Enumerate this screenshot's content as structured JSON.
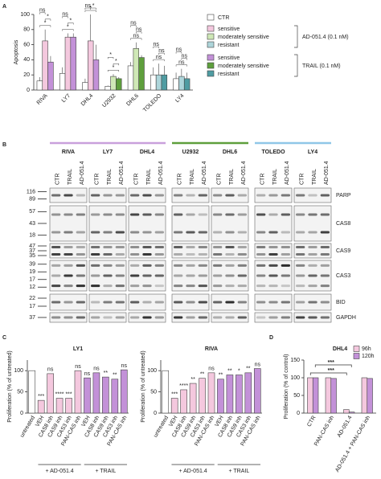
{
  "panel_labels": [
    "A",
    "B",
    "C",
    "D"
  ],
  "chart_data": [
    {
      "type": "bar",
      "ylabel": "Apoptosis",
      "categories": [
        "RIVA",
        "LY7",
        "DHL4",
        "U2932",
        "DHL6",
        "TOLEDO",
        "LY4"
      ],
      "ylim": [
        0,
        100
      ],
      "yticks": [
        0,
        20,
        40,
        60,
        80,
        100
      ],
      "series": [
        {
          "name": "CTR",
          "color": "#ffffff",
          "values": [
            12,
            22,
            10,
            5,
            32,
            20,
            15
          ],
          "errors": [
            5,
            8,
            5,
            1,
            5,
            10,
            8
          ]
        },
        {
          "name": "AD-051.4 (0.1 nM)",
          "values": [
            65,
            70,
            65,
            18,
            55,
            20,
            18
          ],
          "errors": [
            15,
            5,
            35,
            3,
            8,
            15,
            10
          ],
          "colors": [
            "#f4c8de",
            "#f4c8de",
            "#f4c8de",
            "#cfe8b6",
            "#cfe8b6",
            "#add5da",
            "#add5da"
          ],
          "legend": [
            {
              "label": "sensitive",
              "color": "#f4c8de"
            },
            {
              "label": "moderately sensitive",
              "color": "#cfe8b6"
            },
            {
              "label": "resistant",
              "color": "#add5da"
            }
          ]
        },
        {
          "name": "TRAIL (0.1 nM)",
          "values": [
            37,
            70,
            40,
            15,
            43,
            20,
            15
          ],
          "errors": [
            8,
            5,
            20,
            2,
            3,
            12,
            8
          ],
          "colors": [
            "#c391d8",
            "#c391d8",
            "#c391d8",
            "#5e9f3c",
            "#5e9f3c",
            "#4f9ca2",
            "#4f9ca2"
          ],
          "legend": [
            {
              "label": "sensitive",
              "color": "#c391d8"
            },
            {
              "label": "moderately sensitive",
              "color": "#5e9f3c"
            },
            {
              "label": "resistant",
              "color": "#4f9ca2"
            }
          ]
        }
      ],
      "significance": [
        [
          "ns",
          "*",
          "*"
        ],
        [
          "ns",
          "*",
          "*"
        ],
        [
          "ns",
          "*",
          "*"
        ],
        [
          "*",
          "*",
          "*"
        ],
        [
          "ns",
          "ns",
          "ns"
        ],
        [
          "ns",
          "ns",
          "ns"
        ],
        [
          "ns",
          "ns",
          "ns"
        ]
      ]
    },
    {
      "type": "bar",
      "title": "LY1",
      "ylabel": "Proliferation (% of untreated)",
      "categories": [
        "untreated",
        "VEH",
        "CAS8 inh",
        "CAS9 inh",
        "CAS3 inh",
        "PAN-CAS inh",
        "VEH",
        "CAS8 inh",
        "CAS9 inh",
        "CAS3 inh",
        "PAN-CAS inh"
      ],
      "values": [
        100,
        30,
        93,
        35,
        35,
        100,
        83,
        95,
        85,
        80,
        102
      ],
      "colors": [
        "#ffffff",
        "#f4c8de",
        "#f4c8de",
        "#f4c8de",
        "#f4c8de",
        "#f4c8de",
        "#c391d8",
        "#c391d8",
        "#c391d8",
        "#c391d8",
        "#c391d8"
      ],
      "significance": [
        null,
        "***",
        "ns",
        "****",
        "***",
        "ns",
        "ns",
        "ns",
        "**",
        "**",
        "ns"
      ],
      "groups": [
        null,
        "+ AD-051.4",
        "+ AD-051.4",
        "+ AD-051.4",
        "+ AD-051.4",
        "+ AD-051.4",
        "+ TRAIL",
        "+ TRAIL",
        "+ TRAIL",
        "+ TRAIL",
        "+ TRAIL"
      ],
      "ylim": [
        0,
        125
      ],
      "yticks": [
        0,
        50,
        100
      ]
    },
    {
      "type": "bar",
      "title": "RIVA",
      "ylabel": "Proliferation (% of untreated)",
      "categories": [
        "untreated",
        "VEH",
        "CAS8 inh",
        "CAS9 inh",
        "CAS3 inh",
        "PAN-CAS inh",
        "VEH",
        "CAS8 inh",
        "CAS9 inh",
        "CAS3 inh",
        "PAN-CAS inh"
      ],
      "values": [
        100,
        35,
        55,
        70,
        82,
        95,
        80,
        90,
        90,
        95,
        105
      ],
      "colors": [
        "#ffffff",
        "#f4c8de",
        "#f4c8de",
        "#f4c8de",
        "#f4c8de",
        "#f4c8de",
        "#c391d8",
        "#c391d8",
        "#c391d8",
        "#c391d8",
        "#c391d8"
      ],
      "significance": [
        null,
        "***",
        "****",
        "**",
        "**",
        "ns",
        "**",
        "**",
        "*",
        "**",
        "ns"
      ],
      "groups": [
        null,
        "+ AD-051.4",
        "+ AD-051.4",
        "+ AD-051.4",
        "+ AD-051.4",
        "+ AD-051.4",
        "+ TRAIL",
        "+ TRAIL",
        "+ TRAIL",
        "+ TRAIL",
        "+ TRAIL"
      ],
      "ylim": [
        0,
        125
      ],
      "yticks": [
        0,
        50,
        100
      ]
    },
    {
      "type": "bar",
      "title": "DHL4",
      "ylabel": "Proliferation (% of control)",
      "categories": [
        "CTR",
        "PAN-CAS inh",
        "AD-051.4",
        "AD-051.4 + PAN-CAS inh"
      ],
      "series": [
        {
          "name": "96h",
          "color": "#f4c8de",
          "values": [
            100,
            100,
            10,
            100
          ]
        },
        {
          "name": "120h",
          "color": "#c391d8",
          "values": [
            100,
            98,
            3,
            98
          ]
        }
      ],
      "comparisons": [
        "***",
        "***"
      ],
      "ylim": [
        0,
        150
      ],
      "yticks": [
        0,
        50,
        100,
        150
      ]
    }
  ],
  "blot": {
    "groups": [
      {
        "color": "#c9a0dc",
        "cell_lines": [
          "RIVA",
          "LY7",
          "DHL4"
        ]
      },
      {
        "color": "#5e9f3c",
        "cell_lines": [
          "U2932",
          "DHL6"
        ]
      },
      {
        "color": "#8fc7e8",
        "cell_lines": [
          "TOLEDO",
          "LY4"
        ]
      }
    ],
    "lanes": [
      "CTR",
      "TRAIL",
      "AD-051.4"
    ],
    "rows": [
      {
        "protein": "PARP",
        "markers": [
          116,
          89
        ]
      },
      {
        "protein": "CAS8",
        "markers": [
          57,
          43,
          18
        ]
      },
      {
        "protein": "CAS9",
        "markers": [
          47,
          37,
          35
        ]
      },
      {
        "protein": "CAS3",
        "markers": [
          39,
          19,
          17,
          12
        ]
      },
      {
        "protein": "BID",
        "markers": [
          22,
          17
        ]
      },
      {
        "protein": "GAPDH",
        "markers": [
          37
        ]
      }
    ]
  }
}
